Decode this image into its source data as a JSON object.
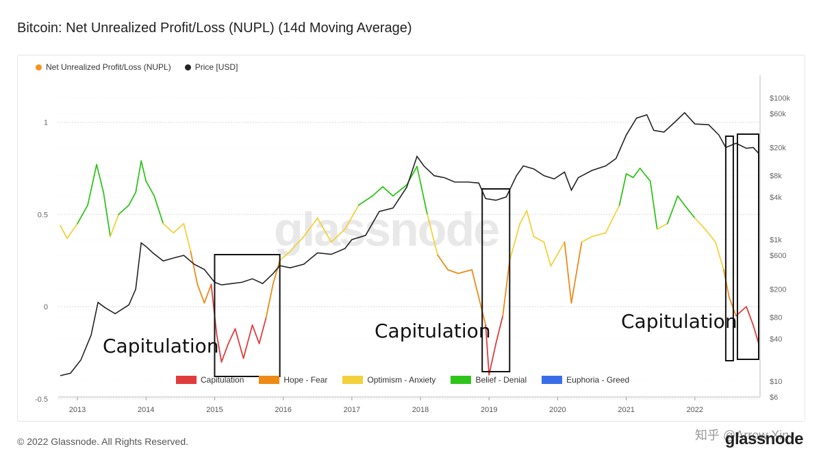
{
  "title": "Bitcoin: Net Unrealized Profit/Loss (NUPL) (14d Moving Average)",
  "legend_top": [
    {
      "label": "Net Unrealized Profit/Loss (NUPL)",
      "color": "#f7931a"
    },
    {
      "label": "Price [USD]",
      "color": "#222222"
    }
  ],
  "legend_bottom": [
    {
      "label": "Capitulation",
      "color": "#e03c3c"
    },
    {
      "label": "Hope - Fear",
      "color": "#ee8a16"
    },
    {
      "label": "Optimism - Anxiety",
      "color": "#f2d13c"
    },
    {
      "label": "Belief - Denial",
      "color": "#2fc41a"
    },
    {
      "label": "Euphoria - Greed",
      "color": "#3a6ee6"
    }
  ],
  "annotations": [
    "Capitulation",
    "Capitulation",
    "Capitulation"
  ],
  "watermark": "glassnode",
  "footer": "© 2022 Glassnode. All Rights Reserved.",
  "logo": "glassnode",
  "corner_watermark": "知乎 @Arrow Xin",
  "chart_data": {
    "type": "line",
    "x_ticks": [
      "2013",
      "2014",
      "2015",
      "2016",
      "2017",
      "2018",
      "2019",
      "2020",
      "2021",
      "2022"
    ],
    "y_left": {
      "ticks": [
        "1",
        "0.5",
        "0",
        "-0.5"
      ],
      "values": [
        1,
        0.5,
        0,
        -0.5
      ],
      "range": [
        -0.5,
        1.1
      ]
    },
    "y_right": {
      "scale": "log",
      "ticks": [
        "$100k",
        "$60k",
        "$20k",
        "$8k",
        "$4k",
        "$1k",
        "$600",
        "$200",
        "$80",
        "$40",
        "$10",
        "$6"
      ],
      "values": [
        100000,
        60000,
        20000,
        8000,
        4000,
        1000,
        600,
        200,
        80,
        40,
        10,
        6
      ],
      "range": [
        6,
        150000
      ]
    },
    "series": [
      {
        "name": "Net Unrealized Profit/Loss (NUPL)",
        "axis": "left",
        "points": [
          [
            2012.75,
            0.44
          ],
          [
            2012.85,
            0.37
          ],
          [
            2013.0,
            0.45
          ],
          [
            2013.15,
            0.55
          ],
          [
            2013.28,
            0.77
          ],
          [
            2013.38,
            0.62
          ],
          [
            2013.48,
            0.38
          ],
          [
            2013.6,
            0.5
          ],
          [
            2013.75,
            0.55
          ],
          [
            2013.85,
            0.62
          ],
          [
            2013.93,
            0.79
          ],
          [
            2014.0,
            0.68
          ],
          [
            2014.12,
            0.6
          ],
          [
            2014.25,
            0.45
          ],
          [
            2014.4,
            0.4
          ],
          [
            2014.55,
            0.45
          ],
          [
            2014.65,
            0.3
          ],
          [
            2014.75,
            0.12
          ],
          [
            2014.85,
            0.02
          ],
          [
            2014.95,
            0.12
          ],
          [
            2015.03,
            -0.15
          ],
          [
            2015.1,
            -0.3
          ],
          [
            2015.2,
            -0.2
          ],
          [
            2015.3,
            -0.12
          ],
          [
            2015.42,
            -0.28
          ],
          [
            2015.55,
            -0.1
          ],
          [
            2015.65,
            -0.2
          ],
          [
            2015.75,
            -0.06
          ],
          [
            2015.85,
            0.12
          ],
          [
            2015.95,
            0.25
          ],
          [
            2016.1,
            0.3
          ],
          [
            2016.3,
            0.38
          ],
          [
            2016.5,
            0.48
          ],
          [
            2016.7,
            0.35
          ],
          [
            2016.9,
            0.42
          ],
          [
            2017.1,
            0.55
          ],
          [
            2017.3,
            0.6
          ],
          [
            2017.45,
            0.65
          ],
          [
            2017.6,
            0.6
          ],
          [
            2017.8,
            0.66
          ],
          [
            2017.95,
            0.76
          ],
          [
            2018.1,
            0.5
          ],
          [
            2018.25,
            0.28
          ],
          [
            2018.4,
            0.2
          ],
          [
            2018.55,
            0.18
          ],
          [
            2018.75,
            0.2
          ],
          [
            2018.95,
            -0.1
          ],
          [
            2019.0,
            -0.37
          ],
          [
            2019.1,
            -0.2
          ],
          [
            2019.2,
            -0.05
          ],
          [
            2019.3,
            0.25
          ],
          [
            2019.45,
            0.45
          ],
          [
            2019.55,
            0.52
          ],
          [
            2019.65,
            0.38
          ],
          [
            2019.8,
            0.35
          ],
          [
            2019.9,
            0.22
          ],
          [
            2020.1,
            0.35
          ],
          [
            2020.2,
            0.02
          ],
          [
            2020.35,
            0.35
          ],
          [
            2020.5,
            0.38
          ],
          [
            2020.7,
            0.4
          ],
          [
            2020.9,
            0.55
          ],
          [
            2021.0,
            0.72
          ],
          [
            2021.1,
            0.7
          ],
          [
            2021.2,
            0.75
          ],
          [
            2021.35,
            0.68
          ],
          [
            2021.45,
            0.42
          ],
          [
            2021.6,
            0.45
          ],
          [
            2021.75,
            0.6
          ],
          [
            2021.85,
            0.55
          ],
          [
            2022.0,
            0.48
          ],
          [
            2022.15,
            0.42
          ],
          [
            2022.3,
            0.35
          ],
          [
            2022.42,
            0.2
          ],
          [
            2022.5,
            0.05
          ],
          [
            2022.6,
            -0.05
          ],
          [
            2022.75,
            0.0
          ],
          [
            2022.85,
            -0.1
          ],
          [
            2022.93,
            -0.2
          ]
        ]
      },
      {
        "name": "Price [USD]",
        "axis": "right",
        "points": [
          [
            2012.75,
            12
          ],
          [
            2012.9,
            13
          ],
          [
            2013.05,
            20
          ],
          [
            2013.2,
            45
          ],
          [
            2013.3,
            130
          ],
          [
            2013.4,
            110
          ],
          [
            2013.55,
            90
          ],
          [
            2013.75,
            120
          ],
          [
            2013.85,
            200
          ],
          [
            2013.93,
            900
          ],
          [
            2014.0,
            800
          ],
          [
            2014.1,
            650
          ],
          [
            2014.25,
            500
          ],
          [
            2014.4,
            550
          ],
          [
            2014.55,
            600
          ],
          [
            2014.7,
            450
          ],
          [
            2014.85,
            380
          ],
          [
            2015.0,
            250
          ],
          [
            2015.1,
            230
          ],
          [
            2015.25,
            240
          ],
          [
            2015.4,
            250
          ],
          [
            2015.55,
            280
          ],
          [
            2015.7,
            240
          ],
          [
            2015.85,
            330
          ],
          [
            2015.95,
            430
          ],
          [
            2016.1,
            400
          ],
          [
            2016.3,
            450
          ],
          [
            2016.5,
            650
          ],
          [
            2016.7,
            620
          ],
          [
            2016.9,
            750
          ],
          [
            2017.0,
            1000
          ],
          [
            2017.2,
            1150
          ],
          [
            2017.4,
            2500
          ],
          [
            2017.6,
            2800
          ],
          [
            2017.8,
            5500
          ],
          [
            2017.95,
            15000
          ],
          [
            2018.05,
            11000
          ],
          [
            2018.2,
            8000
          ],
          [
            2018.35,
            7500
          ],
          [
            2018.5,
            6500
          ],
          [
            2018.7,
            6500
          ],
          [
            2018.85,
            6300
          ],
          [
            2018.95,
            3800
          ],
          [
            2019.1,
            3600
          ],
          [
            2019.25,
            4000
          ],
          [
            2019.4,
            8000
          ],
          [
            2019.5,
            11000
          ],
          [
            2019.65,
            10000
          ],
          [
            2019.8,
            8000
          ],
          [
            2019.95,
            7200
          ],
          [
            2020.1,
            9000
          ],
          [
            2020.2,
            5000
          ],
          [
            2020.3,
            7500
          ],
          [
            2020.5,
            9500
          ],
          [
            2020.7,
            11000
          ],
          [
            2020.85,
            14000
          ],
          [
            2021.0,
            30000
          ],
          [
            2021.15,
            52000
          ],
          [
            2021.3,
            58000
          ],
          [
            2021.4,
            35000
          ],
          [
            2021.55,
            33000
          ],
          [
            2021.7,
            45000
          ],
          [
            2021.85,
            62000
          ],
          [
            2022.0,
            43000
          ],
          [
            2022.2,
            42000
          ],
          [
            2022.35,
            30000
          ],
          [
            2022.45,
            20000
          ],
          [
            2022.6,
            23000
          ],
          [
            2022.75,
            19500
          ],
          [
            2022.85,
            20000
          ],
          [
            2022.93,
            16500
          ]
        ]
      }
    ],
    "zones": [
      {
        "name": "Capitulation",
        "lo": -0.6,
        "hi": 0,
        "color": "#e03c3c"
      },
      {
        "name": "Hope - Fear",
        "lo": 0,
        "hi": 0.25,
        "color": "#ee8a16"
      },
      {
        "name": "Optimism - Anxiety",
        "lo": 0.25,
        "hi": 0.5,
        "color": "#f2d13c"
      },
      {
        "name": "Belief - Denial",
        "lo": 0.5,
        "hi": 0.75,
        "color": "#2fc41a"
      },
      {
        "name": "Euphoria - Greed",
        "lo": 0.75,
        "hi": 1.2,
        "color": "#3a6ee6"
      }
    ],
    "highlight_ranges": [
      [
        2015.0,
        2015.95
      ],
      [
        2018.9,
        2019.3
      ],
      [
        2022.45,
        2022.56
      ],
      [
        2022.62,
        2022.93
      ]
    ],
    "grid": true
  }
}
